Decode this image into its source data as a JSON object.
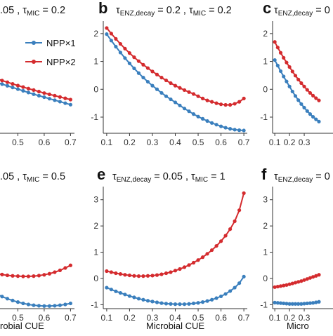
{
  "figure": {
    "colors": {
      "npp1": "#3a7fbd",
      "npp2": "#d42b2e"
    },
    "legend": [
      {
        "label": "NPP×1",
        "color": "#3a7fbd"
      },
      {
        "label": "NPP×2",
        "color": "#d42b2e"
      }
    ]
  },
  "chart_data": [
    {
      "panel": "a",
      "type": "line",
      "title_parts": [
        ".05",
        "MIC",
        " = 0.2"
      ],
      "title_sep": " , τ",
      "xlabel": "",
      "xlim": [
        0.085,
        0.715
      ],
      "xticks": [
        "0.4",
        "0.5",
        "0.6",
        "0.7"
      ],
      "yticks": [],
      "ylim": [
        -2.4,
        3.6
      ],
      "x": [
        0.1,
        0.12,
        0.14,
        0.16,
        0.18,
        0.2,
        0.22,
        0.24,
        0.26,
        0.28,
        0.3,
        0.32,
        0.34,
        0.36,
        0.38,
        0.4,
        0.42,
        0.44,
        0.46,
        0.48,
        0.5,
        0.52,
        0.54,
        0.56,
        0.58,
        0.6,
        0.62,
        0.64,
        0.66,
        0.68,
        0.7
      ],
      "series": [
        {
          "name": "NPP×1",
          "values": [
            1.91,
            1.81,
            1.71,
            1.61,
            1.51,
            1.41,
            1.31,
            1.21,
            1.11,
            1.01,
            0.91,
            0.81,
            0.71,
            0.61,
            0.51,
            0.41,
            0.32,
            0.23,
            0.14,
            0.05,
            -0.04,
            -0.13,
            -0.22,
            -0.31,
            -0.39,
            -0.47,
            -0.55,
            -0.63,
            -0.71,
            -0.79,
            -0.87
          ]
        },
        {
          "name": "NPP×2",
          "values": [
            2.1,
            2.0,
            1.9,
            1.8,
            1.7,
            1.6,
            1.5,
            1.4,
            1.3,
            1.2,
            1.1,
            1.0,
            0.9,
            0.8,
            0.7,
            0.6,
            0.51,
            0.42,
            0.33,
            0.24,
            0.15,
            0.07,
            -0.01,
            -0.09,
            -0.17,
            -0.25,
            -0.32,
            -0.39,
            -0.46,
            -0.53,
            -0.6
          ]
        }
      ]
    },
    {
      "panel": "b",
      "type": "line",
      "title_parts": [
        "ENZ,decay",
        " = 0.2",
        "MIC",
        " = 0.2"
      ],
      "title_sep": " , τ",
      "xlabel": "",
      "xlim": [
        0.085,
        0.715
      ],
      "xticks": [
        "0.1",
        "0.2",
        "0.3",
        "0.4",
        "0.5",
        "0.6",
        "0.7"
      ],
      "yticks": [
        "-1",
        "0",
        "1",
        "2"
      ],
      "ylim": [
        -1.58,
        2.45
      ],
      "x": [
        0.1,
        0.12,
        0.14,
        0.16,
        0.18,
        0.2,
        0.22,
        0.24,
        0.26,
        0.28,
        0.3,
        0.32,
        0.34,
        0.36,
        0.38,
        0.4,
        0.42,
        0.44,
        0.46,
        0.48,
        0.5,
        0.52,
        0.54,
        0.56,
        0.58,
        0.6,
        0.62,
        0.64,
        0.66,
        0.68,
        0.7
      ],
      "series": [
        {
          "name": "NPP×1",
          "values": [
            1.98,
            1.75,
            1.53,
            1.32,
            1.12,
            0.93,
            0.75,
            0.58,
            0.42,
            0.27,
            0.13,
            0.0,
            -0.13,
            -0.25,
            -0.36,
            -0.47,
            -0.58,
            -0.69,
            -0.79,
            -0.89,
            -0.98,
            -1.06,
            -1.14,
            -1.21,
            -1.27,
            -1.33,
            -1.38,
            -1.42,
            -1.45,
            -1.47,
            -1.48
          ]
        },
        {
          "name": "NPP×2",
          "values": [
            2.2,
            2.0,
            1.81,
            1.63,
            1.46,
            1.3,
            1.15,
            1.01,
            0.88,
            0.76,
            0.64,
            0.53,
            0.42,
            0.32,
            0.22,
            0.13,
            0.05,
            -0.03,
            -0.1,
            -0.17,
            -0.25,
            -0.33,
            -0.4,
            -0.45,
            -0.5,
            -0.54,
            -0.56,
            -0.56,
            -0.52,
            -0.45,
            -0.33
          ]
        }
      ]
    },
    {
      "panel": "c",
      "type": "line",
      "title_parts": [
        "ENZ,decay",
        " = 0"
      ],
      "title_sep": "",
      "xlabel": "",
      "xlim": [
        0.085,
        0.715
      ],
      "xticks": [
        "0.1",
        "0.2",
        "0.3"
      ],
      "yticks": [
        "-1",
        "0",
        "1",
        "2"
      ],
      "ylim": [
        -1.58,
        2.45
      ],
      "x": [
        0.1,
        0.12,
        0.14,
        0.16,
        0.18,
        0.2,
        0.22,
        0.24,
        0.26,
        0.28,
        0.3,
        0.32,
        0.34,
        0.36,
        0.38,
        0.4
      ],
      "series": [
        {
          "name": "NPP×1",
          "values": [
            1.05,
            0.85,
            0.65,
            0.46,
            0.28,
            0.1,
            -0.08,
            -0.24,
            -0.39,
            -0.53,
            -0.66,
            -0.78,
            -0.89,
            -0.99,
            -1.08,
            -1.16
          ]
        },
        {
          "name": "NPP×2",
          "values": [
            1.7,
            1.5,
            1.31,
            1.13,
            0.96,
            0.8,
            0.64,
            0.49,
            0.35,
            0.22,
            0.1,
            -0.02,
            -0.13,
            -0.23,
            -0.32,
            -0.4
          ]
        }
      ]
    },
    {
      "panel": "d",
      "type": "line",
      "title_parts": ".05 , τ|MIC| = 0.5",
      "title_sep": "",
      "xlabel": "robial CUE",
      "xlim": [
        0.085,
        0.715
      ],
      "xticks": [
        "0.4",
        "0.5",
        "0.6",
        "0.7"
      ],
      "yticks": [],
      "ylim": [
        -1.15,
        3.5
      ],
      "x": [
        0.3,
        0.32,
        0.34,
        0.36,
        0.38,
        0.4,
        0.42,
        0.44,
        0.46,
        0.48,
        0.5,
        0.52,
        0.54,
        0.56,
        0.58,
        0.6,
        0.62,
        0.64,
        0.66,
        0.68,
        0.7
      ],
      "series": [
        {
          "name": "NPP×1",
          "values": [
            0.1,
            -0.02,
            -0.15,
            -0.27,
            -0.39,
            -0.5,
            -0.6,
            -0.69,
            -0.77,
            -0.84,
            -0.9,
            -0.95,
            -0.99,
            -1.02,
            -1.04,
            -1.05,
            -1.05,
            -1.04,
            -1.02,
            -0.99,
            -0.95
          ]
        },
        {
          "name": "NPP×2",
          "values": [
            0.52,
            0.45,
            0.38,
            0.32,
            0.27,
            0.22,
            0.18,
            0.15,
            0.12,
            0.1,
            0.09,
            0.08,
            0.08,
            0.09,
            0.11,
            0.14,
            0.18,
            0.24,
            0.31,
            0.4,
            0.5
          ]
        }
      ]
    },
    {
      "panel": "e",
      "type": "line",
      "title_parts": [
        "ENZ,decay",
        " = 0.05",
        "MIC",
        " = 1"
      ],
      "title_sep": " , τ",
      "xlabel": "Microbial CUE",
      "xlim": [
        0.085,
        0.715
      ],
      "xticks": [
        "0.1",
        "0.2",
        "0.3",
        "0.4",
        "0.5",
        "0.6",
        "0.7"
      ],
      "yticks": [
        "-1",
        "0",
        "1",
        "2",
        "3"
      ],
      "ylim": [
        -1.15,
        3.5
      ],
      "x": [
        0.1,
        0.12,
        0.14,
        0.16,
        0.18,
        0.2,
        0.22,
        0.24,
        0.26,
        0.28,
        0.3,
        0.32,
        0.34,
        0.36,
        0.38,
        0.4,
        0.42,
        0.44,
        0.46,
        0.48,
        0.5,
        0.52,
        0.54,
        0.56,
        0.58,
        0.6,
        0.62,
        0.64,
        0.66,
        0.68,
        0.7
      ],
      "series": [
        {
          "name": "NPP×1",
          "values": [
            -0.35,
            -0.42,
            -0.49,
            -0.55,
            -0.61,
            -0.67,
            -0.72,
            -0.77,
            -0.81,
            -0.85,
            -0.88,
            -0.91,
            -0.94,
            -0.96,
            -0.97,
            -0.98,
            -0.98,
            -0.98,
            -0.97,
            -0.95,
            -0.93,
            -0.9,
            -0.86,
            -0.81,
            -0.75,
            -0.68,
            -0.59,
            -0.48,
            -0.35,
            -0.18,
            0.07
          ]
        },
        {
          "name": "NPP×2",
          "values": [
            0.28,
            0.24,
            0.2,
            0.17,
            0.14,
            0.12,
            0.1,
            0.09,
            0.09,
            0.1,
            0.11,
            0.13,
            0.16,
            0.2,
            0.24,
            0.3,
            0.36,
            0.43,
            0.51,
            0.6,
            0.7,
            0.81,
            0.94,
            1.08,
            1.24,
            1.42,
            1.63,
            1.88,
            2.18,
            2.6,
            3.25
          ]
        }
      ]
    },
    {
      "panel": "f",
      "type": "line",
      "title_parts": [
        "ENZ,decay",
        " = 0"
      ],
      "title_sep": "",
      "xlabel": "Micro",
      "xlim": [
        0.085,
        0.715
      ],
      "xticks": [
        "0.1",
        "0.2",
        "0.3"
      ],
      "yticks": [
        "-1",
        "0",
        "1",
        "2",
        "3"
      ],
      "ylim": [
        -1.15,
        3.5
      ],
      "x": [
        0.1,
        0.12,
        0.14,
        0.16,
        0.18,
        0.2,
        0.22,
        0.24,
        0.26,
        0.28,
        0.3,
        0.32,
        0.34,
        0.36,
        0.38,
        0.4
      ],
      "series": [
        {
          "name": "NPP×1",
          "values": [
            -0.92,
            -0.93,
            -0.94,
            -0.95,
            -0.96,
            -0.97,
            -0.97,
            -0.97,
            -0.97,
            -0.97,
            -0.96,
            -0.95,
            -0.94,
            -0.93,
            -0.91,
            -0.89
          ]
        },
        {
          "name": "NPP×2",
          "values": [
            -0.33,
            -0.31,
            -0.29,
            -0.27,
            -0.25,
            -0.22,
            -0.19,
            -0.16,
            -0.13,
            -0.1,
            -0.06,
            -0.02,
            0.02,
            0.06,
            0.1,
            0.14
          ]
        }
      ]
    }
  ]
}
